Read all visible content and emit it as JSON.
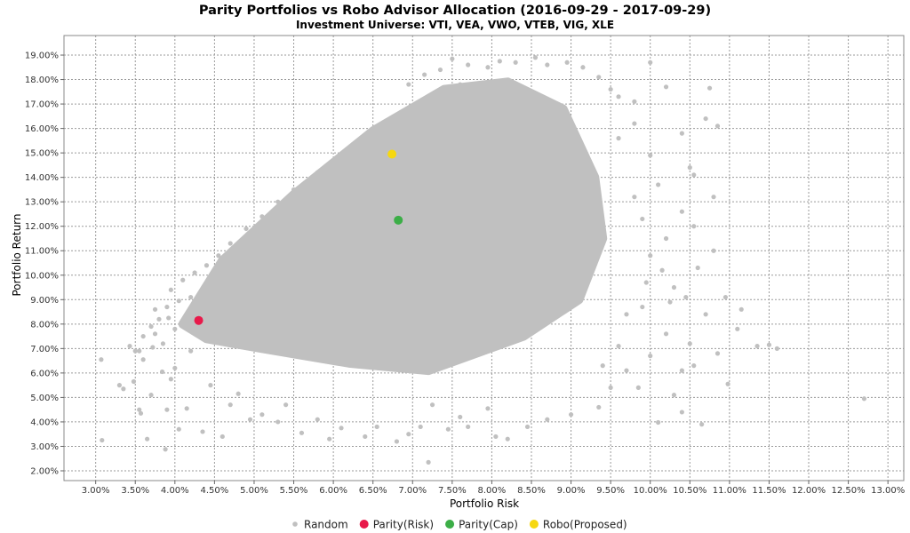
{
  "chart_data": {
    "type": "scatter",
    "title": "Parity Portfolios vs Robo Advisor Allocation (2016-09-29 - 2017-09-29)",
    "subtitle": "Investment Universe: VTI, VEA, VWO, VTEB, VIG, XLE",
    "xlabel": "Portfolio Risk",
    "ylabel": "Portfolio Return",
    "xlim": [
      2.6,
      13.2
    ],
    "ylim": [
      1.6,
      19.8
    ],
    "x_ticks": [
      "3.00%",
      "3.50%",
      "4.00%",
      "4.50%",
      "5.00%",
      "5.50%",
      "6.00%",
      "6.50%",
      "7.00%",
      "7.50%",
      "8.00%",
      "8.50%",
      "9.00%",
      "9.50%",
      "10.00%",
      "10.50%",
      "11.00%",
      "11.50%",
      "12.00%",
      "12.50%",
      "13.00%"
    ],
    "y_ticks": [
      "2.00%",
      "3.00%",
      "4.00%",
      "5.00%",
      "6.00%",
      "7.00%",
      "8.00%",
      "9.00%",
      "10.00%",
      "11.00%",
      "12.00%",
      "13.00%",
      "14.00%",
      "15.00%",
      "16.00%",
      "17.00%",
      "18.00%",
      "19.00%"
    ],
    "grid": true,
    "legend_position": "bottom",
    "series": [
      {
        "name": "Random",
        "color": "#c0c0c0",
        "cloud_envelope": [
          [
            4.1,
            8.0
          ],
          [
            4.6,
            10.6
          ],
          [
            5.5,
            13.3
          ],
          [
            6.5,
            15.9
          ],
          [
            7.4,
            17.6
          ],
          [
            8.2,
            17.9
          ],
          [
            8.9,
            16.8
          ],
          [
            9.3,
            14.0
          ],
          [
            9.4,
            11.5
          ],
          [
            9.1,
            9.0
          ],
          [
            8.4,
            7.5
          ],
          [
            7.2,
            6.1
          ],
          [
            6.2,
            6.4
          ],
          [
            5.1,
            7.0
          ],
          [
            4.4,
            7.4
          ]
        ],
        "values": [
          [
            3.07,
            6.55
          ],
          [
            3.08,
            3.25
          ],
          [
            3.3,
            5.5
          ],
          [
            3.35,
            5.35
          ],
          [
            3.43,
            7.1
          ],
          [
            3.48,
            5.65
          ],
          [
            3.5,
            6.9
          ],
          [
            3.55,
            4.5
          ],
          [
            3.57,
            4.35
          ],
          [
            3.6,
            6.55
          ],
          [
            3.65,
            3.3
          ],
          [
            3.7,
            5.1
          ],
          [
            3.75,
            7.6
          ],
          [
            3.8,
            8.2
          ],
          [
            3.84,
            6.05
          ],
          [
            3.88,
            2.88
          ],
          [
            3.9,
            4.5
          ],
          [
            3.95,
            5.75
          ],
          [
            4.0,
            6.2
          ],
          [
            4.05,
            3.7
          ],
          [
            4.15,
            4.55
          ],
          [
            4.2,
            6.9
          ],
          [
            4.35,
            3.6
          ],
          [
            4.45,
            5.5
          ],
          [
            4.6,
            3.4
          ],
          [
            4.7,
            4.7
          ],
          [
            4.8,
            5.15
          ],
          [
            4.95,
            4.1
          ],
          [
            5.1,
            4.3
          ],
          [
            5.3,
            4.0
          ],
          [
            5.4,
            4.7
          ],
          [
            5.6,
            3.55
          ],
          [
            5.8,
            4.1
          ],
          [
            5.95,
            3.3
          ],
          [
            6.1,
            3.75
          ],
          [
            6.4,
            3.4
          ],
          [
            6.55,
            3.8
          ],
          [
            6.8,
            3.2
          ],
          [
            6.95,
            3.5
          ],
          [
            7.1,
            3.8
          ],
          [
            7.2,
            2.35
          ],
          [
            7.25,
            4.7
          ],
          [
            7.45,
            3.7
          ],
          [
            7.6,
            4.2
          ],
          [
            7.7,
            3.8
          ],
          [
            7.95,
            4.55
          ],
          [
            8.05,
            3.4
          ],
          [
            8.2,
            3.3
          ],
          [
            8.45,
            3.8
          ],
          [
            8.7,
            4.1
          ],
          [
            9.0,
            4.3
          ],
          [
            9.35,
            4.6
          ],
          [
            9.5,
            5.4
          ],
          [
            9.7,
            6.1
          ],
          [
            9.85,
            5.4
          ],
          [
            10.1,
            3.98
          ],
          [
            10.3,
            5.1
          ],
          [
            10.4,
            4.4
          ],
          [
            10.55,
            6.3
          ],
          [
            10.65,
            3.9
          ],
          [
            10.5,
            7.2
          ],
          [
            10.7,
            8.4
          ],
          [
            10.85,
            6.8
          ],
          [
            10.95,
            9.1
          ],
          [
            10.98,
            5.55
          ],
          [
            11.1,
            7.8
          ],
          [
            11.15,
            8.6
          ],
          [
            11.35,
            7.1
          ],
          [
            11.5,
            7.15
          ],
          [
            11.6,
            7.0
          ],
          [
            12.7,
            4.95
          ],
          [
            10.4,
            6.1
          ],
          [
            10.25,
            8.9
          ],
          [
            10.0,
            10.8
          ],
          [
            10.2,
            11.5
          ],
          [
            10.4,
            12.6
          ],
          [
            10.55,
            12.0
          ],
          [
            10.8,
            11.0
          ],
          [
            10.5,
            14.4
          ],
          [
            10.55,
            14.1
          ],
          [
            10.4,
            15.8
          ],
          [
            10.7,
            16.4
          ],
          [
            10.85,
            16.1
          ],
          [
            10.75,
            17.65
          ],
          [
            10.2,
            17.7
          ],
          [
            10.0,
            18.7
          ],
          [
            9.8,
            17.1
          ],
          [
            9.6,
            17.3
          ],
          [
            9.5,
            17.6
          ],
          [
            9.35,
            18.1
          ],
          [
            9.15,
            18.5
          ],
          [
            8.95,
            18.7
          ],
          [
            8.7,
            18.6
          ],
          [
            8.55,
            18.9
          ],
          [
            8.3,
            18.7
          ],
          [
            8.1,
            18.75
          ],
          [
            7.95,
            18.5
          ],
          [
            7.7,
            18.6
          ],
          [
            7.5,
            18.85
          ],
          [
            7.35,
            18.4
          ],
          [
            7.15,
            18.2
          ],
          [
            6.95,
            17.8
          ],
          [
            9.8,
            13.2
          ],
          [
            9.9,
            12.3
          ],
          [
            10.0,
            14.9
          ],
          [
            10.1,
            13.7
          ],
          [
            10.15,
            10.2
          ],
          [
            9.95,
            9.7
          ],
          [
            10.3,
            9.5
          ],
          [
            10.45,
            9.1
          ],
          [
            9.6,
            15.6
          ],
          [
            9.8,
            16.2
          ],
          [
            10.6,
            10.3
          ],
          [
            10.8,
            13.2
          ],
          [
            9.7,
            8.4
          ],
          [
            9.9,
            8.7
          ],
          [
            10.2,
            7.6
          ],
          [
            10.0,
            6.7
          ],
          [
            9.4,
            6.3
          ],
          [
            9.6,
            7.1
          ],
          [
            3.9,
            8.7
          ],
          [
            3.95,
            9.4
          ],
          [
            3.85,
            7.2
          ],
          [
            4.0,
            7.8
          ],
          [
            4.1,
            9.8
          ],
          [
            4.2,
            9.1
          ],
          [
            3.7,
            7.9
          ],
          [
            3.75,
            8.6
          ],
          [
            4.25,
            10.1
          ],
          [
            4.4,
            10.4
          ],
          [
            3.6,
            7.5
          ],
          [
            3.92,
            8.25
          ],
          [
            4.05,
            8.95
          ],
          [
            3.72,
            7.05
          ],
          [
            3.55,
            6.9
          ],
          [
            4.55,
            10.8
          ],
          [
            4.7,
            11.3
          ],
          [
            4.9,
            11.9
          ],
          [
            5.1,
            12.4
          ],
          [
            5.3,
            13.0
          ],
          [
            5.5,
            13.5
          ],
          [
            5.8,
            14.2
          ],
          [
            6.0,
            14.6
          ],
          [
            6.3,
            15.3
          ],
          [
            6.5,
            15.8
          ],
          [
            6.7,
            16.2
          ],
          [
            6.9,
            16.6
          ],
          [
            7.1,
            17.0
          ],
          [
            7.4,
            17.4
          ],
          [
            7.6,
            17.8
          ]
        ]
      },
      {
        "name": "Parity(Risk)",
        "color": "#e8194a",
        "values": [
          [
            4.3,
            8.15
          ]
        ]
      },
      {
        "name": "Parity(Cap)",
        "color": "#3cae47",
        "values": [
          [
            6.82,
            12.25
          ]
        ]
      },
      {
        "name": "Robo(Proposed)",
        "color": "#f6d810",
        "values": [
          [
            6.74,
            14.95
          ]
        ]
      }
    ]
  }
}
